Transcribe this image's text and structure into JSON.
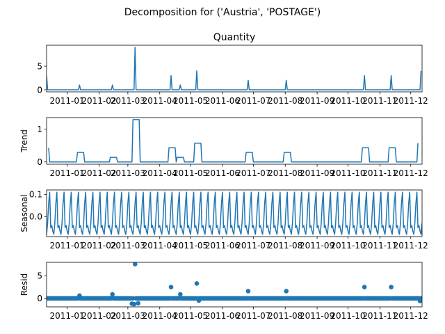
{
  "figure": {
    "suptitle": "Decomposition for ('Austria', 'POSTAGE')",
    "colors": {
      "series": "#1f77b4",
      "axes": "#000000",
      "background": "#ffffff"
    }
  },
  "chart_data": [
    {
      "id": "observed",
      "type": "line",
      "title": "Quantity",
      "ylabel": "",
      "xlim": [
        "2010-12-12",
        "2011-12-12"
      ],
      "ylim": [
        -0.45,
        9.45
      ],
      "yticks": [
        0,
        5
      ],
      "xticks": [
        "2011-01-01",
        "2011-02-01",
        "2011-03-01",
        "2011-04-01",
        "2011-05-01",
        "2011-06-01",
        "2011-07-01",
        "2011-08-01",
        "2011-09-01",
        "2011-10-01",
        "2011-11-01",
        "2011-12-01"
      ],
      "xtick_labels": [
        "2011-01",
        "2011-02",
        "2011-03",
        "2011-04",
        "2011-05",
        "2011-06",
        "2011-07",
        "2011-08",
        "2011-09",
        "2011-10",
        "2011-11",
        "2011-12"
      ],
      "baseline": 0,
      "points": [
        [
          "2010-12-12",
          3
        ],
        [
          "2010-12-13",
          0
        ],
        [
          "2011-01-12",
          0
        ],
        [
          "2011-01-13",
          1
        ],
        [
          "2011-01-14",
          0
        ],
        [
          "2011-02-13",
          0
        ],
        [
          "2011-02-14",
          1
        ],
        [
          "2011-02-15",
          0
        ],
        [
          "2011-03-07",
          0
        ],
        [
          "2011-03-08",
          9
        ],
        [
          "2011-03-09",
          0
        ],
        [
          "2011-04-11",
          0
        ],
        [
          "2011-04-12",
          3
        ],
        [
          "2011-04-13",
          0
        ],
        [
          "2011-04-20",
          0
        ],
        [
          "2011-04-21",
          1
        ],
        [
          "2011-04-22",
          0
        ],
        [
          "2011-05-06",
          0
        ],
        [
          "2011-05-07",
          4
        ],
        [
          "2011-05-08",
          0
        ],
        [
          "2011-06-25",
          0
        ],
        [
          "2011-06-26",
          2
        ],
        [
          "2011-06-27",
          0
        ],
        [
          "2011-08-01",
          0
        ],
        [
          "2011-08-02",
          2
        ],
        [
          "2011-08-03",
          0
        ],
        [
          "2011-10-16",
          0
        ],
        [
          "2011-10-17",
          3
        ],
        [
          "2011-10-18",
          0
        ],
        [
          "2011-11-11",
          0
        ],
        [
          "2011-11-12",
          3
        ],
        [
          "2011-11-13",
          0
        ],
        [
          "2011-12-10",
          0
        ],
        [
          "2011-12-11",
          4
        ]
      ]
    },
    {
      "id": "trend",
      "type": "line",
      "title": "",
      "ylabel": "Trend",
      "xlim": [
        "2010-12-12",
        "2011-12-12"
      ],
      "ylim": [
        -0.07,
        1.35
      ],
      "yticks": [
        0,
        1
      ],
      "xticks": [
        "2011-01-01",
        "2011-02-01",
        "2011-03-01",
        "2011-04-01",
        "2011-05-01",
        "2011-06-01",
        "2011-07-01",
        "2011-08-01",
        "2011-09-01",
        "2011-10-01",
        "2011-11-01",
        "2011-12-01"
      ],
      "xtick_labels": [
        "2011-01",
        "2011-02",
        "2011-03",
        "2011-04",
        "2011-05",
        "2011-06",
        "2011-07",
        "2011-08",
        "2011-09",
        "2011-10",
        "2011-11",
        "2011-12"
      ],
      "points": [
        [
          "2010-12-14",
          0.43
        ],
        [
          "2010-12-15",
          0
        ],
        [
          "2011-01-10",
          0
        ],
        [
          "2011-01-11",
          0.29
        ],
        [
          "2011-01-17",
          0.29
        ],
        [
          "2011-01-18",
          0
        ],
        [
          "2011-02-11",
          0
        ],
        [
          "2011-02-12",
          0.14
        ],
        [
          "2011-02-18",
          0.14
        ],
        [
          "2011-02-19",
          0
        ],
        [
          "2011-03-05",
          0
        ],
        [
          "2011-03-06",
          1.29
        ],
        [
          "2011-03-12",
          1.29
        ],
        [
          "2011-03-13",
          0
        ],
        [
          "2011-04-09",
          0
        ],
        [
          "2011-04-10",
          0.43
        ],
        [
          "2011-04-16",
          0.43
        ],
        [
          "2011-04-17",
          0
        ],
        [
          "2011-04-18",
          0.14
        ],
        [
          "2011-04-24",
          0.14
        ],
        [
          "2011-04-25",
          0
        ],
        [
          "2011-05-04",
          0
        ],
        [
          "2011-05-05",
          0.57
        ],
        [
          "2011-05-11",
          0.57
        ],
        [
          "2011-05-12",
          0
        ],
        [
          "2011-06-23",
          0
        ],
        [
          "2011-06-24",
          0.29
        ],
        [
          "2011-06-30",
          0.29
        ],
        [
          "2011-07-01",
          0
        ],
        [
          "2011-07-30",
          0
        ],
        [
          "2011-07-31",
          0.29
        ],
        [
          "2011-08-06",
          0.29
        ],
        [
          "2011-08-07",
          0
        ],
        [
          "2011-10-14",
          0
        ],
        [
          "2011-10-15",
          0.43
        ],
        [
          "2011-10-21",
          0.43
        ],
        [
          "2011-10-22",
          0
        ],
        [
          "2011-11-09",
          0
        ],
        [
          "2011-11-10",
          0.43
        ],
        [
          "2011-11-16",
          0.43
        ],
        [
          "2011-11-17",
          0
        ],
        [
          "2011-12-07",
          0
        ],
        [
          "2011-12-08",
          0.57
        ]
      ]
    },
    {
      "id": "seasonal",
      "type": "line",
      "title": "",
      "ylabel": "Seasonal",
      "xlim": [
        "2010-12-12",
        "2011-12-12"
      ],
      "ylim": [
        -0.09,
        0.12
      ],
      "yticks": [
        0.0,
        0.1
      ],
      "ytick_labels": [
        "0.0",
        "0.1"
      ],
      "xticks": [
        "2011-01-01",
        "2011-02-01",
        "2011-03-01",
        "2011-04-01",
        "2011-05-01",
        "2011-06-01",
        "2011-07-01",
        "2011-08-01",
        "2011-09-01",
        "2011-10-01",
        "2011-11-01",
        "2011-12-01"
      ],
      "xtick_labels": [
        "2011-01",
        "2011-02",
        "2011-03",
        "2011-04",
        "2011-05",
        "2011-06",
        "2011-07",
        "2011-08",
        "2011-09",
        "2011-10",
        "2011-11",
        "2011-12"
      ],
      "start": "2010-12-12",
      "end": "2011-12-12",
      "period_days": 7,
      "cycle_values": [
        -0.08,
        -0.03,
        0.06,
        0.11,
        -0.05,
        -0.04,
        -0.065
      ]
    },
    {
      "id": "resid",
      "type": "scatter",
      "title": "",
      "ylabel": "Resid",
      "xlim": [
        "2010-12-12",
        "2011-12-12"
      ],
      "ylim": [
        -1.9,
        8.0
      ],
      "yticks": [
        0,
        5
      ],
      "xticks": [
        "2011-01-01",
        "2011-02-01",
        "2011-03-01",
        "2011-04-01",
        "2011-05-01",
        "2011-06-01",
        "2011-07-01",
        "2011-08-01",
        "2011-09-01",
        "2011-10-01",
        "2011-11-01",
        "2011-12-01"
      ],
      "xtick_labels": [
        "2011-01",
        "2011-02",
        "2011-03",
        "2011-04",
        "2011-05",
        "2011-06",
        "2011-07",
        "2011-08",
        "2011-09",
        "2011-10",
        "2011-11",
        "2011-12"
      ],
      "baseline": 0,
      "start": "2010-12-12",
      "end": "2011-12-12",
      "outliers": [
        [
          "2011-01-13",
          0.6
        ],
        [
          "2011-02-14",
          0.9
        ],
        [
          "2011-03-08",
          7.6
        ],
        [
          "2011-03-05",
          -1.2
        ],
        [
          "2011-03-07",
          -1.3
        ],
        [
          "2011-03-11",
          -1.1
        ],
        [
          "2011-04-12",
          2.5
        ],
        [
          "2011-04-21",
          0.9
        ],
        [
          "2011-05-07",
          3.3
        ],
        [
          "2011-05-09",
          -0.5
        ],
        [
          "2011-06-26",
          1.6
        ],
        [
          "2011-08-02",
          1.6
        ],
        [
          "2011-10-17",
          2.5
        ],
        [
          "2011-11-12",
          2.5
        ],
        [
          "2011-12-10",
          -0.6
        ]
      ]
    }
  ]
}
